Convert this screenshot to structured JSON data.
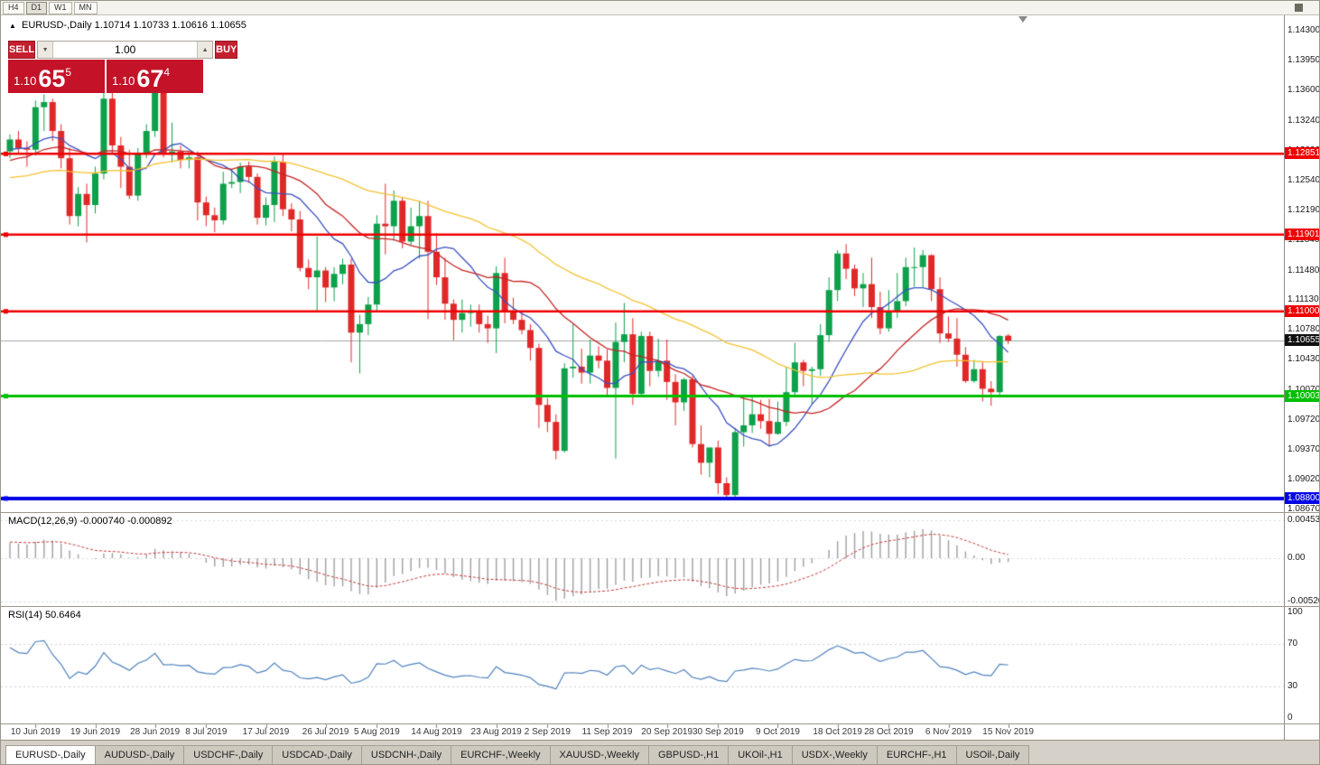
{
  "toolbar": {
    "timeframes": [
      {
        "label": "H4",
        "active": false
      },
      {
        "label": "D1",
        "active": true
      },
      {
        "label": "W1",
        "active": false
      },
      {
        "label": "MN",
        "active": false
      }
    ]
  },
  "chart_header": {
    "marker": "▲",
    "symbol_title": "EURUSD-,Daily",
    "ohlc": "1.10714 1.10733 1.10616 1.10655"
  },
  "trade_panel": {
    "sell_label": "SELL",
    "buy_label": "BUY",
    "volume": "1.00",
    "volume_down_glyph": "▼",
    "volume_up_glyph": "▲",
    "sell_price": {
      "prefix": "1.10",
      "big": "65",
      "sup": "5"
    },
    "buy_price": {
      "prefix": "1.10",
      "big": "67",
      "sup": "4"
    }
  },
  "indicator_labels": {
    "macd": "MACD(12,26,9) -0.000740 -0.000892",
    "rsi": "RSI(14) 50.6464"
  },
  "price_axis": {
    "labels": [
      "1.14300",
      "1.13950",
      "1.13600",
      "1.13240",
      "1.12890",
      "1.12540",
      "1.12190",
      "1.11840",
      "1.11480",
      "1.11130",
      "1.10780",
      "1.10430",
      "1.10070",
      "1.09720",
      "1.09370",
      "1.09020",
      "1.08670"
    ],
    "current": {
      "price": 1.10655,
      "label": "1.10655",
      "bg": "#111111",
      "line_color": "#a8a8a8"
    }
  },
  "macd_axis": {
    "labels": [
      {
        "value": 0.004536,
        "label": "0.004536"
      },
      {
        "value": 0,
        "label": "0.00"
      },
      {
        "value": -0.005205,
        "label": "-0.005205"
      }
    ]
  },
  "rsi_axis": {
    "labels": [
      {
        "value": 100,
        "label": "100"
      },
      {
        "value": 70,
        "label": "70"
      },
      {
        "value": 30,
        "label": "30"
      },
      {
        "value": 0,
        "label": "0"
      }
    ]
  },
  "levels": [
    {
      "price": 1.12851,
      "label": "1.12851",
      "color": "#ee0000",
      "width": 2.5
    },
    {
      "price": 1.11901,
      "label": "1.11901",
      "color": "#ee0000",
      "width": 2.5
    },
    {
      "price": 1.11,
      "label": "1.11000",
      "color": "#ee0000",
      "width": 2.5
    },
    {
      "price": 1.10003,
      "label": "1.10003",
      "color": "#00bf00",
      "width": 3
    },
    {
      "price": 1.088,
      "label": "1.08800",
      "color": "#0000e6",
      "width": 4
    }
  ],
  "date_axis": {
    "labels": [
      "10 Jun 2019",
      "19 Jun 2019",
      "28 Jun 2019",
      "8 Jul 2019",
      "17 Jul 2019",
      "26 Jul 2019",
      "5 Aug 2019",
      "14 Aug 2019",
      "23 Aug 2019",
      "2 Sep 2019",
      "11 Sep 2019",
      "20 Sep 2019",
      "30 Sep 2019",
      "9 Oct 2019",
      "18 Oct 2019",
      "28 Oct 2019",
      "6 Nov 2019",
      "15 Nov 2019"
    ],
    "indices": [
      3,
      10,
      17,
      23,
      30,
      37,
      43,
      50,
      57,
      63,
      70,
      77,
      83,
      90,
      97,
      103,
      110,
      117
    ]
  },
  "tabs": [
    {
      "label": "EURUSD-,Daily",
      "active": true
    },
    {
      "label": "AUDUSD-,Daily",
      "active": false
    },
    {
      "label": "USDCHF-,Daily",
      "active": false
    },
    {
      "label": "USDCAD-,Daily",
      "active": false
    },
    {
      "label": "USDCNH-,Daily",
      "active": false
    },
    {
      "label": "EURCHF-,Weekly",
      "active": false
    },
    {
      "label": "XAUUSD-,Weekly",
      "active": false
    },
    {
      "label": "GBPUSD-,H1",
      "active": false
    },
    {
      "label": "UKOil-,H1",
      "active": false
    },
    {
      "label": "USDX-,Weekly",
      "active": false
    },
    {
      "label": "EURCHF-,H1",
      "active": false
    },
    {
      "label": "USOil-,Daily",
      "active": false
    }
  ],
  "chart_data": {
    "type": "candlestick",
    "symbol": "EURUSD-",
    "timeframe": "Daily",
    "current_bar": {
      "open": 1.10714,
      "high": 1.10733,
      "low": 1.10616,
      "close": 1.10655
    },
    "bid": "1.10655",
    "ask": "1.10674",
    "y_range": [
      1.0864,
      1.1449
    ],
    "up_color": "#0ea04a",
    "down_color": "#e02828",
    "moving_averages": [
      {
        "period": 10,
        "color": "#3b50c0"
      },
      {
        "period": 20,
        "color": "#c42424"
      },
      {
        "period": 45,
        "color": "#f2c230"
      }
    ],
    "macd_params": {
      "fast": 12,
      "slow": 26,
      "signal": 9
    },
    "rsi_period": 14,
    "warmup_closes": [
      1.119,
      1.1205,
      1.1198,
      1.1215,
      1.1222,
      1.121,
      1.1228,
      1.1235,
      1.1228,
      1.1242,
      1.125,
      1.1243,
      1.1258,
      1.125,
      1.1262,
      1.127,
      1.1258,
      1.1272,
      1.128,
      1.127,
      1.1285,
      1.1278,
      1.129,
      1.1282,
      1.1295,
      1.1288,
      1.13,
      1.1292,
      1.1285,
      1.129
    ],
    "candles": [
      [
        1.1288,
        1.1308,
        1.128,
        1.1302
      ],
      [
        1.1302,
        1.1312,
        1.1285,
        1.1292
      ],
      [
        1.1292,
        1.13,
        1.127,
        1.129
      ],
      [
        1.129,
        1.1348,
        1.1283,
        1.134
      ],
      [
        1.134,
        1.1355,
        1.1312,
        1.1346
      ],
      [
        1.1346,
        1.135,
        1.13,
        1.1312
      ],
      [
        1.1312,
        1.132,
        1.1268,
        1.128
      ],
      [
        1.128,
        1.1292,
        1.1202,
        1.1212
      ],
      [
        1.1212,
        1.1246,
        1.12,
        1.1238
      ],
      [
        1.1238,
        1.125,
        1.1181,
        1.1225
      ],
      [
        1.1225,
        1.127,
        1.1215,
        1.1262
      ],
      [
        1.1262,
        1.1361,
        1.1255,
        1.135
      ],
      [
        1.135,
        1.136,
        1.1285,
        1.1295
      ],
      [
        1.1295,
        1.1305,
        1.1245,
        1.127
      ],
      [
        1.127,
        1.129,
        1.1232,
        1.1236
      ],
      [
        1.1236,
        1.1292,
        1.123,
        1.1285
      ],
      [
        1.1285,
        1.132,
        1.128,
        1.1312
      ],
      [
        1.1312,
        1.1378,
        1.1305,
        1.1373
      ],
      [
        1.1373,
        1.1377,
        1.1281,
        1.1285
      ],
      [
        1.1285,
        1.1322,
        1.1275,
        1.1288
      ],
      [
        1.1288,
        1.1295,
        1.1268,
        1.1278
      ],
      [
        1.1278,
        1.1285,
        1.1268,
        1.1281
      ],
      [
        1.1281,
        1.1288,
        1.1207,
        1.1228
      ],
      [
        1.1228,
        1.1235,
        1.12,
        1.1213
      ],
      [
        1.1213,
        1.1222,
        1.1193,
        1.1207
      ],
      [
        1.1207,
        1.1264,
        1.1202,
        1.125
      ],
      [
        1.125,
        1.1267,
        1.1245,
        1.1252
      ],
      [
        1.1252,
        1.1275,
        1.1239,
        1.127
      ],
      [
        1.127,
        1.1276,
        1.1251,
        1.1258
      ],
      [
        1.1258,
        1.1262,
        1.1202,
        1.121
      ],
      [
        1.121,
        1.1234,
        1.1201,
        1.1225
      ],
      [
        1.1225,
        1.1282,
        1.1205,
        1.1276
      ],
      [
        1.1276,
        1.1286,
        1.1212,
        1.122
      ],
      [
        1.122,
        1.1227,
        1.1194,
        1.1208
      ],
      [
        1.1208,
        1.1218,
        1.1147,
        1.1151
      ],
      [
        1.1151,
        1.1161,
        1.1126,
        1.114
      ],
      [
        1.114,
        1.1188,
        1.1101,
        1.1148
      ],
      [
        1.1148,
        1.1152,
        1.1111,
        1.1128
      ],
      [
        1.1128,
        1.1152,
        1.1112,
        1.1144
      ],
      [
        1.1144,
        1.1162,
        1.1132,
        1.1155
      ],
      [
        1.1155,
        1.1162,
        1.104,
        1.1075
      ],
      [
        1.1075,
        1.1096,
        1.1027,
        1.1085
      ],
      [
        1.1085,
        1.1117,
        1.1072,
        1.1108
      ],
      [
        1.1108,
        1.1213,
        1.1101,
        1.1203
      ],
      [
        1.1203,
        1.125,
        1.1167,
        1.12
      ],
      [
        1.12,
        1.1242,
        1.1183,
        1.123
      ],
      [
        1.123,
        1.1234,
        1.1174,
        1.1182
      ],
      [
        1.1182,
        1.1222,
        1.1178,
        1.12
      ],
      [
        1.12,
        1.123,
        1.1162,
        1.1212
      ],
      [
        1.1212,
        1.123,
        1.1091,
        1.117
      ],
      [
        1.117,
        1.1192,
        1.1131,
        1.114
      ],
      [
        1.114,
        1.1163,
        1.109,
        1.1109
      ],
      [
        1.1109,
        1.1114,
        1.1066,
        1.109
      ],
      [
        1.109,
        1.1114,
        1.1075,
        1.1098
      ],
      [
        1.1098,
        1.1108,
        1.1082,
        1.11
      ],
      [
        1.11,
        1.1108,
        1.1075,
        1.1085
      ],
      [
        1.1085,
        1.1095,
        1.1063,
        1.108
      ],
      [
        1.108,
        1.1153,
        1.1051,
        1.1145
      ],
      [
        1.1145,
        1.1163,
        1.1086,
        1.11
      ],
      [
        1.11,
        1.1116,
        1.1085,
        1.109
      ],
      [
        1.109,
        1.1098,
        1.1073,
        1.1078
      ],
      [
        1.1078,
        1.1085,
        1.1042,
        1.1057
      ],
      [
        1.1057,
        1.1062,
        1.0963,
        1.099
      ],
      [
        1.099,
        1.0998,
        1.0958,
        1.097
      ],
      [
        1.097,
        1.0979,
        1.0926,
        1.0936
      ],
      [
        1.0936,
        1.1039,
        1.0934,
        1.1033
      ],
      [
        1.1033,
        1.1085,
        1.1022,
        1.1035
      ],
      [
        1.1035,
        1.1056,
        1.1015,
        1.1028
      ],
      [
        1.1028,
        1.1067,
        1.1015,
        1.1048
      ],
      [
        1.1048,
        1.1059,
        1.1033,
        1.1042
      ],
      [
        1.1042,
        1.1055,
        1.1,
        1.101
      ],
      [
        1.101,
        1.1087,
        1.0927,
        1.1064
      ],
      [
        1.1064,
        1.111,
        1.104,
        1.1073
      ],
      [
        1.1073,
        1.1092,
        1.099,
        1.1003
      ],
      [
        1.1003,
        1.1076,
        1.1002,
        1.1071
      ],
      [
        1.1071,
        1.1076,
        1.1012,
        1.103
      ],
      [
        1.103,
        1.1068,
        1.1023,
        1.1042
      ],
      [
        1.1042,
        1.1067,
        1.0996,
        1.1017
      ],
      [
        1.1017,
        1.1026,
        1.0966,
        1.0993
      ],
      [
        1.0993,
        1.1022,
        1.0983,
        1.102
      ],
      [
        1.102,
        1.1024,
        1.094,
        1.0944
      ],
      [
        1.0944,
        1.0966,
        1.0908,
        1.0922
      ],
      [
        1.0922,
        1.0938,
        1.0905,
        1.094
      ],
      [
        1.094,
        1.0948,
        1.0885,
        1.0898
      ],
      [
        1.0898,
        1.0905,
        1.0879,
        1.0884
      ],
      [
        1.0884,
        1.0963,
        1.0881,
        1.0958
      ],
      [
        1.0958,
        1.0999,
        1.0941,
        1.0966
      ],
      [
        1.0966,
        1.0999,
        1.0957,
        1.0979
      ],
      [
        1.0979,
        1.0996,
        1.0962,
        1.0971
      ],
      [
        1.0971,
        1.0997,
        1.0941,
        1.0956
      ],
      [
        1.0956,
        1.0994,
        1.0955,
        1.097
      ],
      [
        1.097,
        1.1034,
        1.0965,
        1.1005
      ],
      [
        1.1005,
        1.1063,
        1.1002,
        1.104
      ],
      [
        1.104,
        1.1043,
        1.1012,
        1.103
      ],
      [
        1.103,
        1.1035,
        1.0991,
        1.1032
      ],
      [
        1.1032,
        1.1085,
        1.1024,
        1.1072
      ],
      [
        1.1072,
        1.114,
        1.1064,
        1.1125
      ],
      [
        1.1125,
        1.1172,
        1.1112,
        1.1168
      ],
      [
        1.1168,
        1.1179,
        1.1138,
        1.115
      ],
      [
        1.115,
        1.1155,
        1.1118,
        1.1127
      ],
      [
        1.1127,
        1.1145,
        1.1105,
        1.1132
      ],
      [
        1.1132,
        1.1163,
        1.1092,
        1.1105
      ],
      [
        1.1105,
        1.1123,
        1.1073,
        1.108
      ],
      [
        1.108,
        1.1125,
        1.1076,
        1.11
      ],
      [
        1.11,
        1.1145,
        1.1092,
        1.1112
      ],
      [
        1.1112,
        1.1163,
        1.1106,
        1.1152
      ],
      [
        1.1152,
        1.1175,
        1.1129,
        1.1152
      ],
      [
        1.1152,
        1.1172,
        1.1128,
        1.1166
      ],
      [
        1.1166,
        1.1167,
        1.1112,
        1.1126
      ],
      [
        1.1126,
        1.114,
        1.1063,
        1.1074
      ],
      [
        1.1074,
        1.1094,
        1.1064,
        1.1068
      ],
      [
        1.1068,
        1.1092,
        1.1035,
        1.1049
      ],
      [
        1.1049,
        1.1058,
        1.1016,
        1.1018
      ],
      [
        1.1018,
        1.1043,
        1.1016,
        1.1032
      ],
      [
        1.1032,
        1.104,
        1.0994,
        1.1009
      ],
      [
        1.1009,
        1.1018,
        1.0989,
        1.1005
      ],
      [
        1.1005,
        1.1072,
        1.0999,
        1.1071
      ],
      [
        1.10714,
        1.10733,
        1.10616,
        1.10655
      ]
    ]
  }
}
